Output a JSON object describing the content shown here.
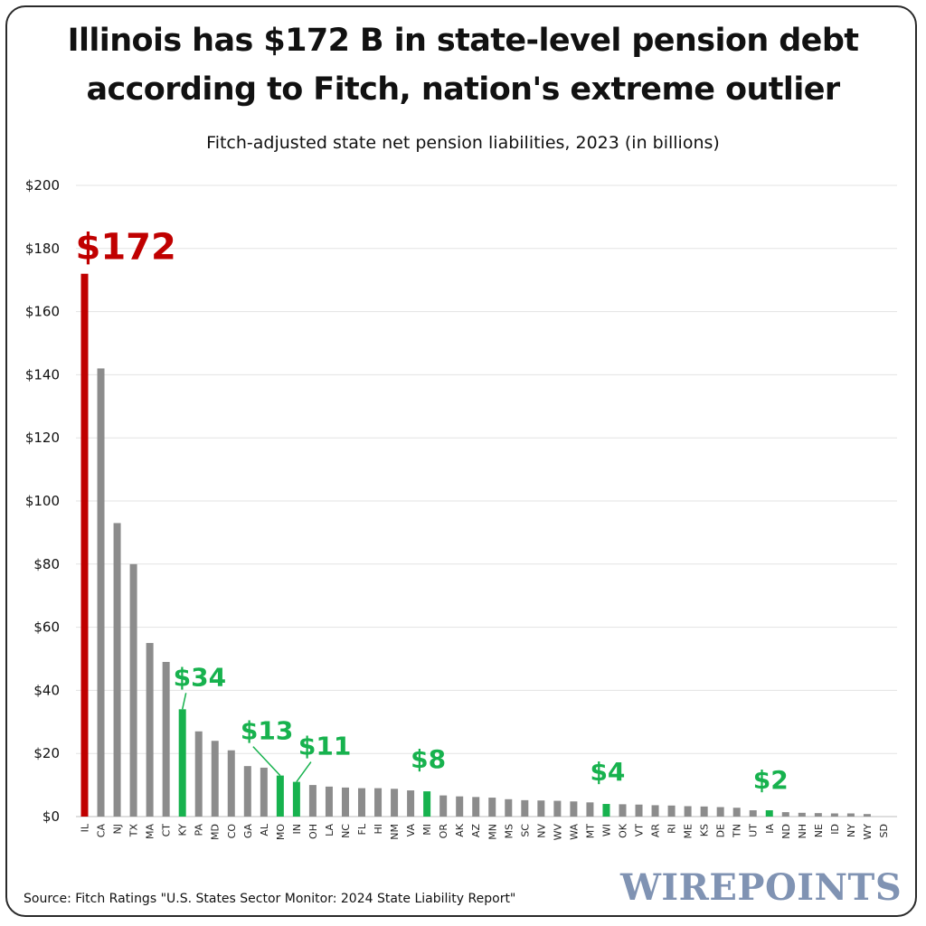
{
  "title_lines": [
    "Illinois has $172 B in state-level pension debt",
    "according to Fitch, nation's extreme outlier"
  ],
  "subtitle": "Fitch-adjusted state net pension liabilities, 2023 (in billions)",
  "source": "Source: Fitch Ratings \"U.S. States Sector Monitor: 2024 State Liability Report\"",
  "brand": "WIREPOINTS",
  "colors": {
    "highlight_red": "#c00000",
    "highlight_green": "#17b24e",
    "bar_gray": "#8c8c8c",
    "grid": "#e3e3e3"
  },
  "chart_data": {
    "type": "bar",
    "title": "Illinois has $172 B in state-level pension debt according to Fitch, nation's extreme outlier",
    "subtitle": "Fitch-adjusted state net pension liabilities, 2023 (in billions)",
    "xlabel": "",
    "ylabel": "",
    "ylim": [
      0,
      200
    ],
    "yticks": [
      "$0",
      "$20",
      "$40",
      "$60",
      "$80",
      "$100",
      "$120",
      "$140",
      "$160",
      "$180",
      "$200"
    ],
    "grid": true,
    "categories": [
      "IL",
      "CA",
      "NJ",
      "TX",
      "MA",
      "CT",
      "KY",
      "PA",
      "MD",
      "CO",
      "GA",
      "AL",
      "MO",
      "IN",
      "OH",
      "LA",
      "NC",
      "FL",
      "HI",
      "NM",
      "VA",
      "MI",
      "OR",
      "AK",
      "AZ",
      "MN",
      "MS",
      "SC",
      "NV",
      "WV",
      "WA",
      "MT",
      "WI",
      "OK",
      "VT",
      "AR",
      "RI",
      "ME",
      "KS",
      "DE",
      "TN",
      "UT",
      "IA",
      "ND",
      "NH",
      "NE",
      "ID",
      "NY",
      "WY",
      "SD"
    ],
    "values": [
      172,
      142,
      93,
      80,
      55,
      49,
      34,
      27,
      24,
      21,
      16,
      15.5,
      13,
      11,
      10,
      9.5,
      9.2,
      9,
      9,
      8.8,
      8.3,
      8,
      6.7,
      6.4,
      6.2,
      6,
      5.5,
      5.2,
      5.1,
      5,
      4.8,
      4.5,
      4,
      3.9,
      3.8,
      3.6,
      3.5,
      3.3,
      3.2,
      3,
      2.8,
      2,
      2,
      1.4,
      1.2,
      1.1,
      1,
      1,
      0.8,
      0
    ],
    "highlights": {
      "IL": "red",
      "KY": "green",
      "MO": "green",
      "IN": "green",
      "MI": "green",
      "WI": "green",
      "IA": "green"
    },
    "data_labels": [
      {
        "state": "IL",
        "text": "$172",
        "color": "red"
      },
      {
        "state": "KY",
        "text": "$34",
        "color": "green"
      },
      {
        "state": "MO",
        "text": "$13",
        "color": "green"
      },
      {
        "state": "IN",
        "text": "$11",
        "color": "green"
      },
      {
        "state": "MI",
        "text": "$8",
        "color": "green"
      },
      {
        "state": "WI",
        "text": "$4",
        "color": "green"
      },
      {
        "state": "IA",
        "text": "$2",
        "color": "green"
      }
    ]
  }
}
